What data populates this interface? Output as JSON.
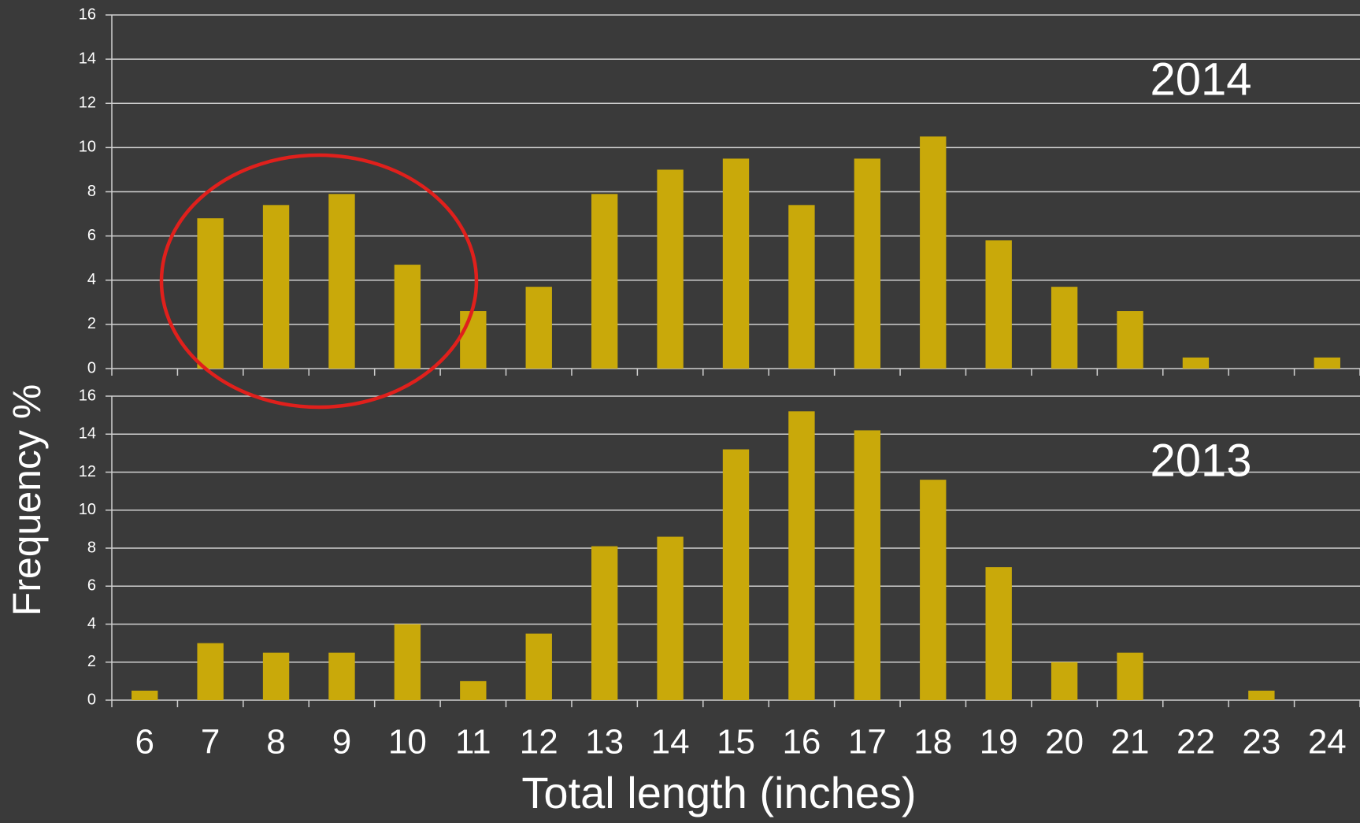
{
  "chart_data": [
    {
      "type": "bar",
      "annotation": "2014",
      "categories": [
        null,
        null,
        null,
        null,
        null,
        null,
        null,
        null,
        null,
        null,
        null,
        null,
        null,
        null,
        null,
        null,
        null,
        null,
        null
      ],
      "values": [
        0,
        6.8,
        7.4,
        7.9,
        4.7,
        2.6,
        3.7,
        7.9,
        9.0,
        9.5,
        7.4,
        9.5,
        10.5,
        5.8,
        3.7,
        2.6,
        0.5,
        0,
        0.5
      ],
      "color": "#c9a90a",
      "ylim": [
        0,
        16
      ],
      "yticks": [
        0,
        2,
        4,
        6,
        8,
        10,
        12,
        14,
        16
      ],
      "grid": true
    },
    {
      "type": "bar",
      "annotation": "2013",
      "xlabel": "Total length (inches)",
      "ylabel": "Frequency %",
      "categories": [
        "6",
        "7",
        "8",
        "9",
        "10",
        "11",
        "12",
        "13",
        "14",
        "15",
        "16",
        "17",
        "18",
        "19",
        "20",
        "21",
        "22",
        "23",
        "24"
      ],
      "values": [
        0.5,
        3.0,
        2.5,
        2.5,
        4.0,
        1.0,
        3.5,
        8.1,
        8.6,
        13.2,
        15.2,
        14.2,
        11.6,
        7.0,
        2.0,
        2.5,
        0,
        0.5,
        0
      ],
      "color": "#c9a90a",
      "ylim": [
        0,
        16
      ],
      "yticks": [
        0,
        2,
        4,
        6,
        8,
        10,
        12,
        14,
        16
      ],
      "grid": true
    }
  ]
}
